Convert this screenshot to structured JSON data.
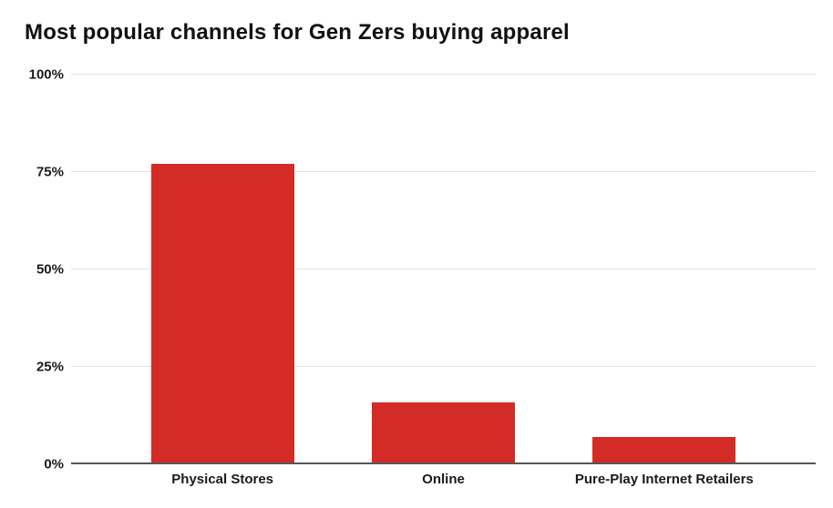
{
  "chart_data": {
    "type": "bar",
    "title": "Most popular channels for Gen Zers buying apparel",
    "categories": [
      "Physical Stores",
      "Online",
      "Pure-Play Internet Retailers"
    ],
    "values": [
      77,
      16,
      7
    ],
    "xlabel": "",
    "ylabel": "",
    "ylim": [
      0,
      100
    ],
    "yticks": [
      {
        "value": 0,
        "label": "0%"
      },
      {
        "value": 25,
        "label": "25%"
      },
      {
        "value": 50,
        "label": "50%"
      },
      {
        "value": 75,
        "label": "75%"
      },
      {
        "value": 100,
        "label": "100%"
      }
    ],
    "grid": true,
    "legend": false,
    "colors": {
      "bar": "#d32b26",
      "gridline": "#e3e3e3",
      "axis_baseline": "#565656",
      "text": "#1a1a1a",
      "title": "#111111",
      "background": "#ffffff"
    }
  }
}
